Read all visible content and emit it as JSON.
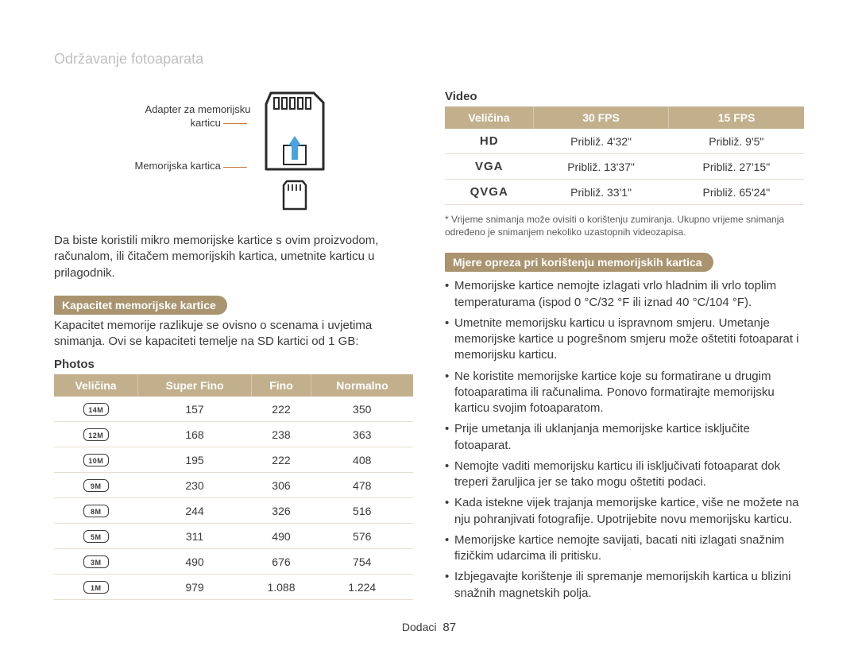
{
  "page": {
    "title": "Održavanje fotoaparata",
    "footer_label": "Dodaci",
    "footer_page": "87"
  },
  "diagram": {
    "label_adapter_l1": "Adapter za memorijsku",
    "label_adapter_l2": "karticu",
    "label_card": "Memorijska kartica"
  },
  "left": {
    "intro": "Da biste koristili mikro memorijske kartice s ovim proizvodom, računalom, ili čitačem memorijskih kartica, umetnite karticu u prilagodnik.",
    "section_title": "Kapacitet memorijske kartice",
    "section_desc": "Kapacitet memorije razlikuje se ovisno o scenama i uvjetima snimanja. Ovi se kapaciteti temelje na SD kartici od 1 GB:",
    "sub_head": "Photos",
    "headers": [
      "Veličina",
      "Super Fino",
      "Fino",
      "Normalno"
    ],
    "rows": [
      {
        "size": "14M",
        "sf": "157",
        "f": "222",
        "n": "350"
      },
      {
        "size": "12M",
        "sf": "168",
        "f": "238",
        "n": "363"
      },
      {
        "size": "10M",
        "sf": "195",
        "f": "222",
        "n": "408"
      },
      {
        "size": "9M",
        "sf": "230",
        "f": "306",
        "n": "478"
      },
      {
        "size": "8M",
        "sf": "244",
        "f": "326",
        "n": "516"
      },
      {
        "size": "5M",
        "sf": "311",
        "f": "490",
        "n": "576"
      },
      {
        "size": "3M",
        "sf": "490",
        "f": "676",
        "n": "754"
      },
      {
        "size": "1M",
        "sf": "979",
        "f": "1.088",
        "n": "1.224"
      }
    ]
  },
  "right": {
    "sub_head": "Video",
    "headers": [
      "Veličina",
      "30 FPS",
      "15 FPS"
    ],
    "rows": [
      {
        "size": "HD",
        "c30": "Približ. 4'32\"",
        "c15": "Približ. 9'5\""
      },
      {
        "size": "VGA",
        "c30": "Približ. 13'37\"",
        "c15": "Približ. 27'15\""
      },
      {
        "size": "QVGA",
        "c30": "Približ. 33'1\"",
        "c15": "Približ. 65'24\""
      }
    ],
    "footnote": "* Vrijeme snimanja može ovisiti o korištenju zumiranja. Ukupno vrijeme snimanja određeno je snimanjem nekoliko uzastopnih videozapisa.",
    "section_title": "Mjere opreza pri korištenju memorijskih kartica",
    "bullets": [
      "Memorijske kartice nemojte izlagati vrlo hladnim ili vrlo toplim temperaturama (ispod 0 °C/32 °F ili iznad 40 °C/104 °F).",
      "Umetnite memorijsku karticu u ispravnom smjeru. Umetanje memorijske kartice u pogrešnom smjeru može oštetiti fotoaparat i memorijsku karticu.",
      "Ne koristite memorijske kartice koje su formatirane u drugim fotoaparatima ili računalima. Ponovo formatirajte memorijsku karticu svojim fotoaparatom.",
      "Prije umetanja ili uklanjanja memorijske kartice isključite fotoaparat.",
      "Nemojte vaditi memorijsku karticu ili isključivati fotoaparat dok treperi žaruljica jer se tako mogu oštetiti podaci.",
      "Kada istekne vijek trajanja memorijske kartice, više ne možete na nju pohranjivati fotografije. Upotrijebite novu memorijsku karticu.",
      "Memorijske kartice nemojte savijati, bacati niti izlagati snažnim fizičkim udarcima ili pritisku.",
      "Izbjegavajte korištenje ili spremanje memorijskih kartica u blizini snažnih magnetskih polja."
    ]
  },
  "colors": {
    "pill_bg": "#a9946f",
    "header_bg": "#c2af8c"
  }
}
